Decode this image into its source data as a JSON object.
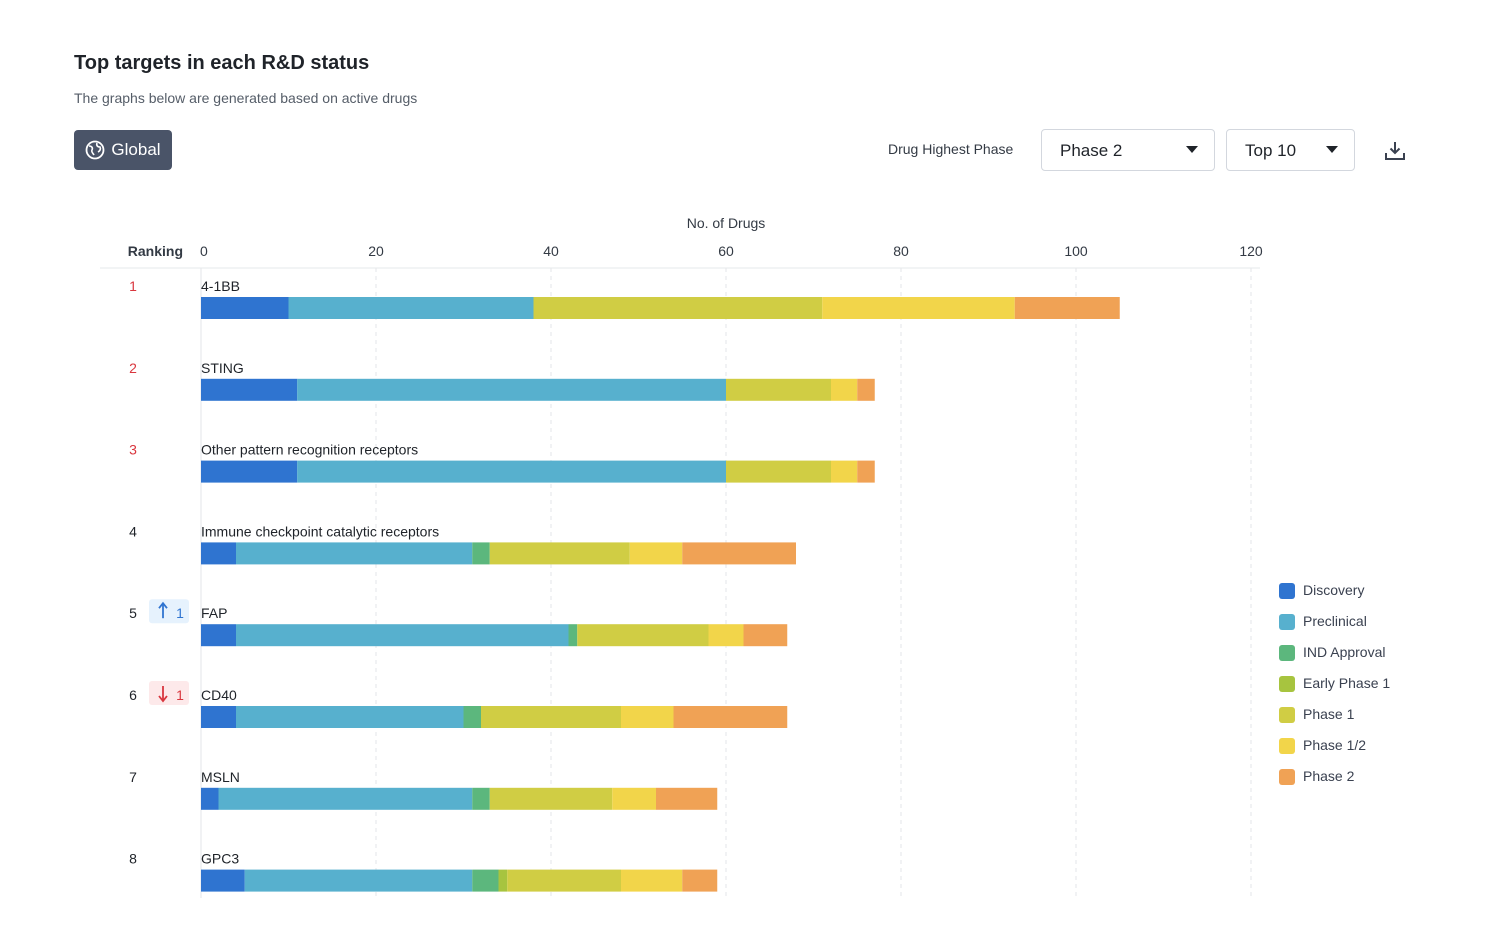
{
  "header": {
    "title": "Top targets in each R&D status",
    "subtitle": "The graphs below are generated based on active drugs"
  },
  "toolbar": {
    "scope_label": "Global",
    "phase_filter_label": "Drug Highest Phase",
    "phase_select_value": "Phase 2",
    "top_select_value": "Top 10"
  },
  "chart_data": {
    "type": "bar",
    "orientation": "horizontal",
    "stacked": true,
    "xlabel": "No. of Drugs",
    "ranking_header": "Ranking",
    "xlim": [
      0,
      120
    ],
    "xticks": [
      0,
      20,
      40,
      60,
      80,
      100,
      120
    ],
    "grid": "vertical-dashed",
    "legend_position": "right",
    "categories": [
      "4-1BB",
      "STING",
      "Other pattern recognition receptors",
      "Immune checkpoint catalytic receptors",
      "FAP",
      "CD40",
      "MSLN",
      "GPC3"
    ],
    "ranks": [
      "1",
      "2",
      "3",
      "4",
      "5",
      "6",
      "7",
      "8"
    ],
    "rank_changes": [
      null,
      null,
      null,
      null,
      {
        "direction": "up",
        "value": "1"
      },
      {
        "direction": "down",
        "value": "1"
      },
      null,
      null
    ],
    "series": [
      {
        "name": "Discovery",
        "color": "#2f74d0",
        "values": [
          10,
          11,
          11,
          4,
          4,
          4,
          2,
          5
        ]
      },
      {
        "name": "Preclinical",
        "color": "#57b0ce",
        "values": [
          28,
          49,
          49,
          27,
          38,
          26,
          29,
          26
        ]
      },
      {
        "name": "IND Approval",
        "color": "#5cb77d",
        "values": [
          0,
          0,
          0,
          2,
          1,
          2,
          2,
          3
        ]
      },
      {
        "name": "Early Phase 1",
        "color": "#a7c43f",
        "values": [
          0,
          0,
          0,
          0,
          0,
          0,
          0,
          1
        ]
      },
      {
        "name": "Phase 1",
        "color": "#d0cd44",
        "values": [
          33,
          12,
          12,
          16,
          15,
          16,
          14,
          13
        ]
      },
      {
        "name": "Phase 1/2",
        "color": "#f2d54a",
        "values": [
          22,
          3,
          3,
          6,
          4,
          6,
          5,
          7
        ]
      },
      {
        "name": "Phase 2",
        "color": "#f0a255",
        "values": [
          12,
          2,
          2,
          13,
          5,
          13,
          7,
          4
        ]
      }
    ]
  }
}
